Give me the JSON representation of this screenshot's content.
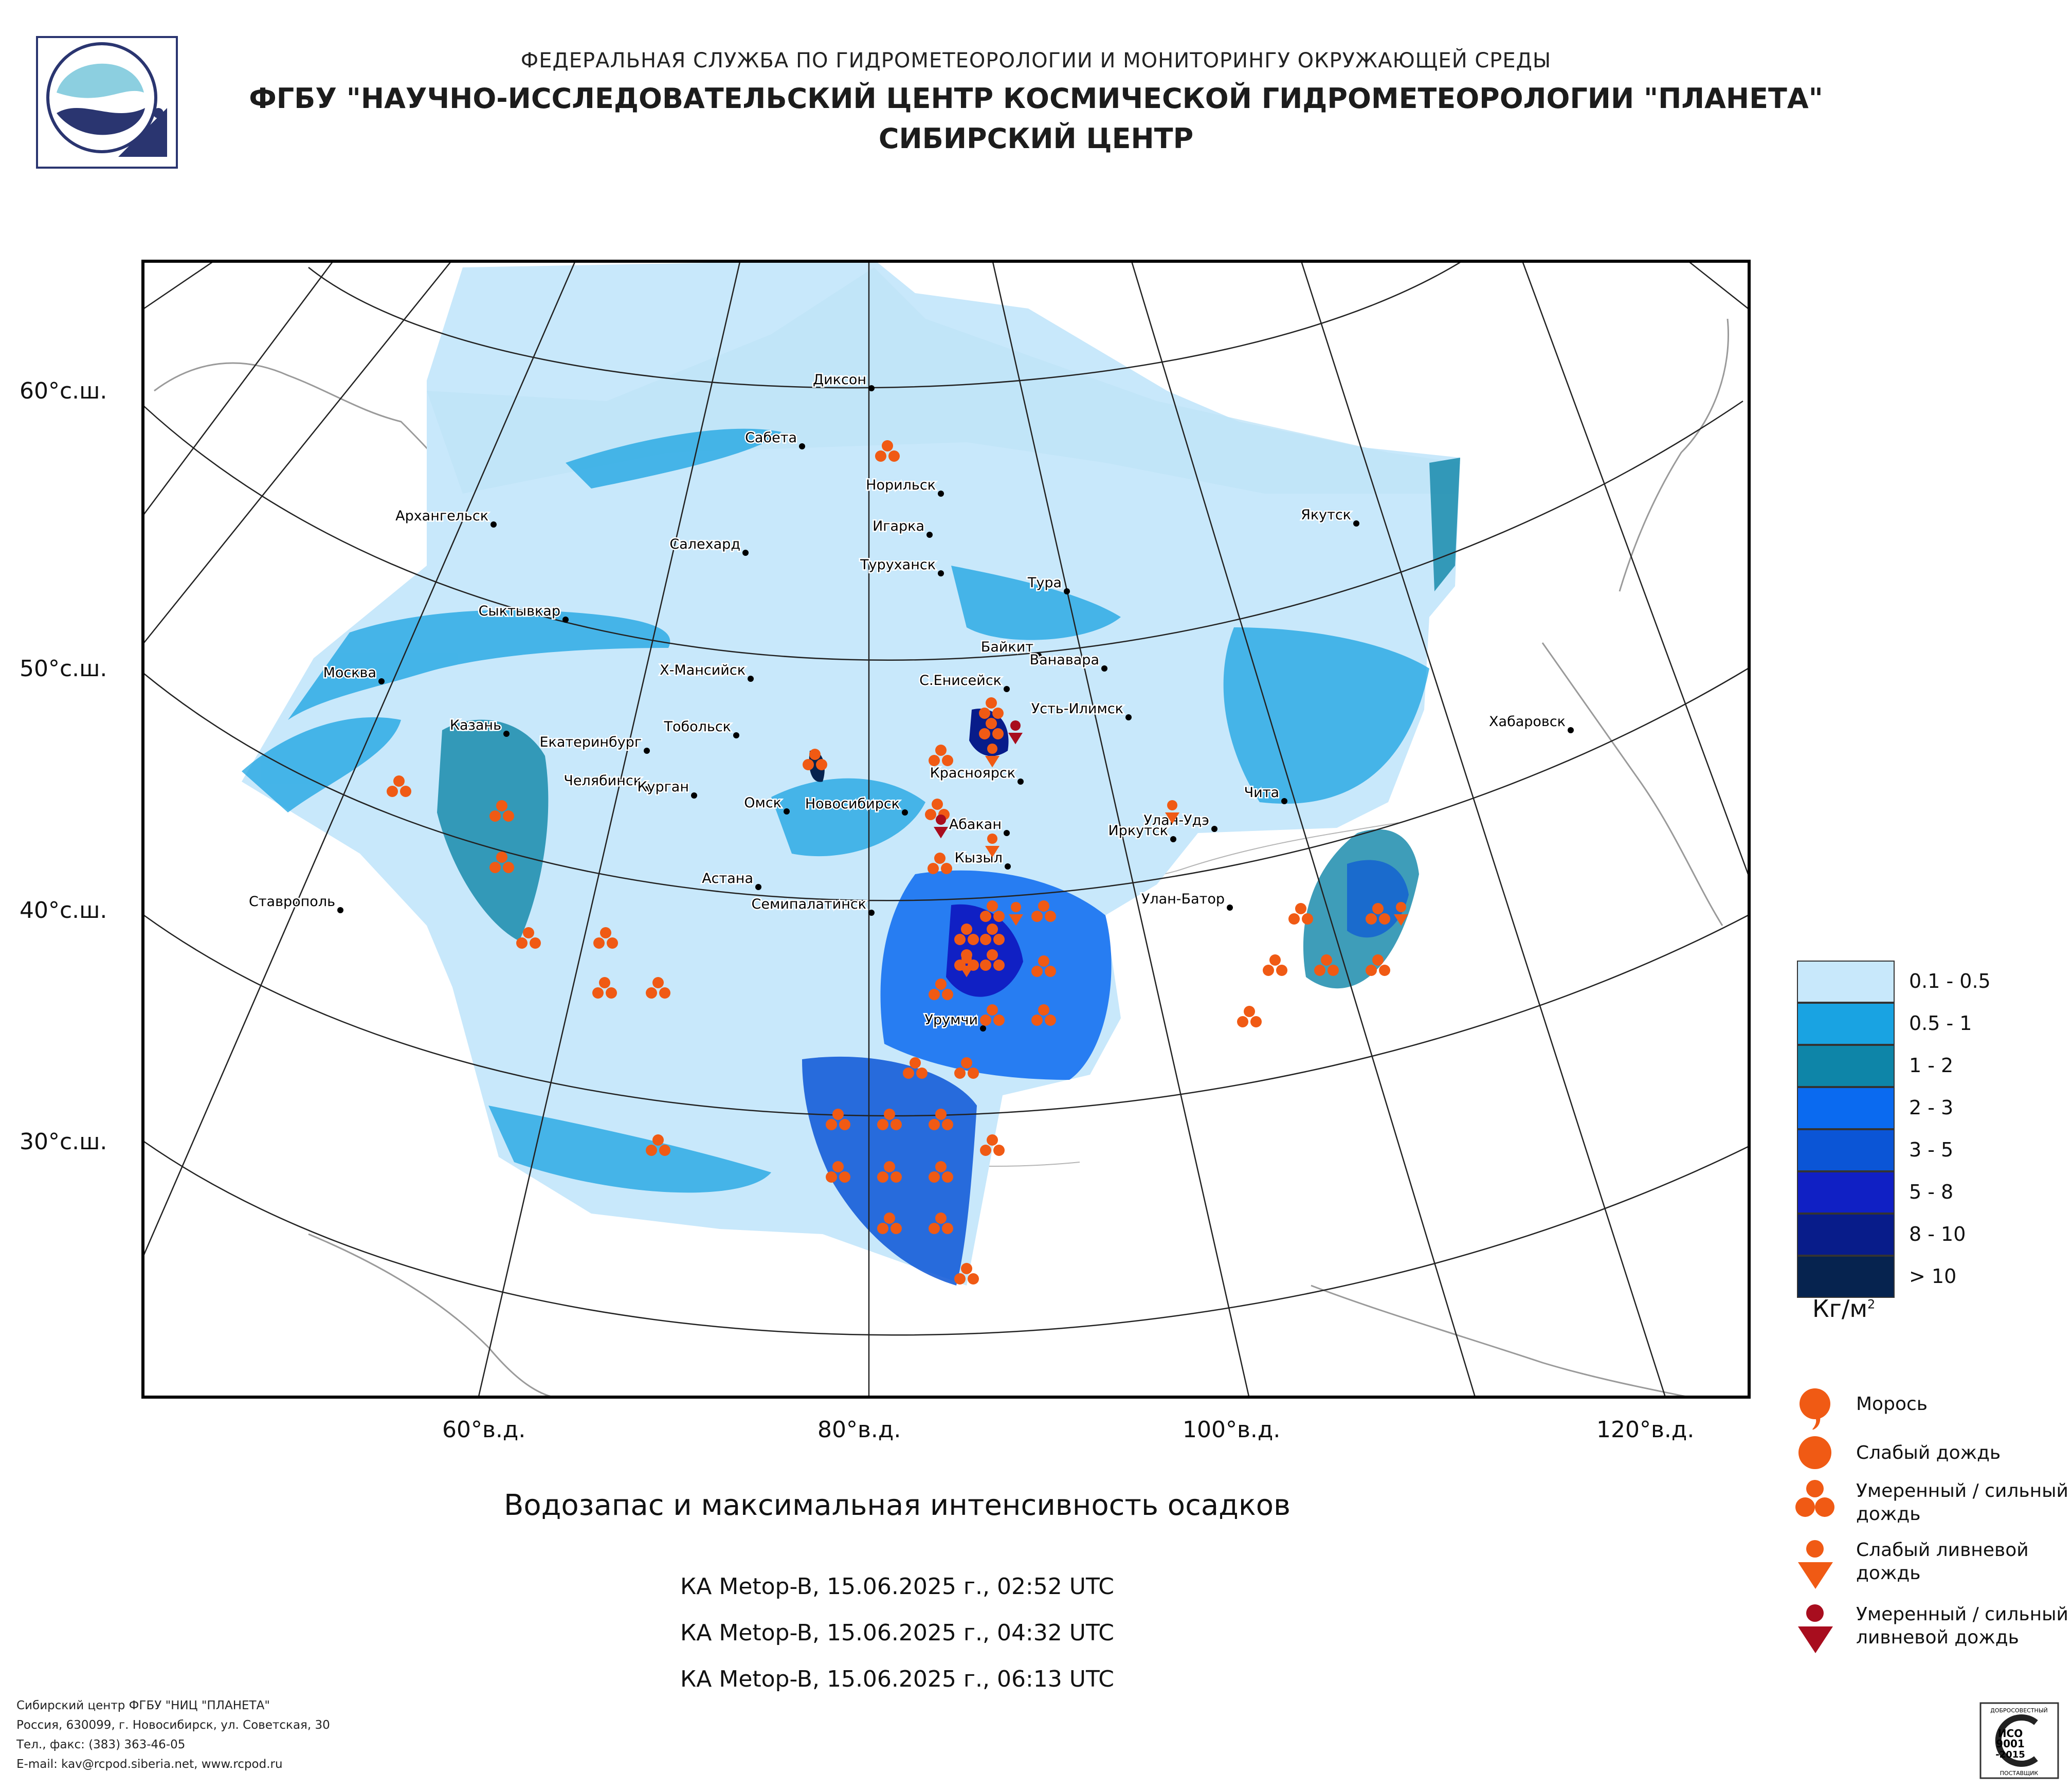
{
  "header": {
    "line1": "ФЕДЕРАЛЬНАЯ СЛУЖБА ПО ГИДРОМЕТЕОРОЛОГИИ И МОНИТОРИНГУ ОКРУЖАЮЩЕЙ СРЕДЫ",
    "line2": "ФГБУ \"НАУЧНО-ИССЛЕДОВАТЕЛЬСКИЙ ЦЕНТР КОСМИЧЕСКОЙ ГИДРОМЕТЕОРОЛОГИИ \"ПЛАНЕТА\"",
    "line3": "СИБИРСКИЙ ЦЕНТР"
  },
  "axes": {
    "lat_labels": [
      "60°с.ш.",
      "50°с.ш.",
      "40°с.ш.",
      "30°с.ш."
    ],
    "lon_labels": [
      "60°в.д.",
      "80°в.д.",
      "100°в.д.",
      "120°в.д."
    ]
  },
  "cities": [
    "Диксон",
    "Сабета",
    "Норильск",
    "Игарка",
    "Салехард",
    "Архангельск",
    "Туруханск",
    "Тура",
    "Якутск",
    "Сыктывкар",
    "Байкит",
    "Ванавара",
    "Х-Мансийск",
    "С.Енисейск",
    "Усть-Илимск",
    "Москва",
    "Казань",
    "Екатеринбург",
    "Тобольск",
    "Хабаровск",
    "Челябинск",
    "Курган",
    "Красноярск",
    "Чита",
    "Омск",
    "Новосибирск",
    "Абакан",
    "Улан-Удэ",
    "Иркутск",
    "Кызыл",
    "Астана",
    "Семипалатинск",
    "Улан-Батор",
    "Ставрополь",
    "Урумчи"
  ],
  "caption": "Водозапас и максимальная интенсивность осадков",
  "passes": [
    "КА Metop-B, 15.06.2025 г., 02:52 UTC",
    "КА Metop-B, 15.06.2025 г., 04:32 UTC",
    "КА Metop-B, 15.06.2025 г., 06:13 UTC"
  ],
  "legend": {
    "scale": [
      {
        "label": "0.1 - 0.5",
        "color": "#c8e8fb"
      },
      {
        "label": "0.5 - 1",
        "color": "#19a3e2"
      },
      {
        "label": "1 - 2",
        "color": "#0e85a8"
      },
      {
        "label": "2 - 3",
        "color": "#0a6af0"
      },
      {
        "label": "3 - 5",
        "color": "#0b55d6"
      },
      {
        "label": "5 - 8",
        "color": "#1020c4"
      },
      {
        "label": "8 - 10",
        "color": "#081c8a"
      },
      {
        "label": "> 10",
        "color": "#06234f"
      }
    ],
    "units": "Кг/м",
    "units_sup": "2",
    "symbols": [
      {
        "name": "drizzle",
        "label": "Морось"
      },
      {
        "name": "light-rain",
        "label": "Слабый дождь"
      },
      {
        "name": "moderate-rain",
        "label": "Умеренный / сильный\nдождь"
      },
      {
        "name": "light-shower",
        "label": "Слабый ливневой\nдождь"
      },
      {
        "name": "heavy-shower",
        "label": "Умеренный / сильный\nливневой дождь"
      }
    ]
  },
  "footer": {
    "line1": "Сибирский центр ФГБУ \"НИЦ \"ПЛАНЕТА\"",
    "line2": "Россия, 630099, г. Новосибирск, ул. Советская, 30",
    "line3": "Тел., факс: (383) 363-46-05",
    "line4": "E-mail: kav@rcpod.siberia.net, www.rcpod.ru"
  },
  "iso": {
    "top": "ДОБРОСОВЕСТНЫЙ",
    "mid1": "ИСО",
    "mid2": "9001",
    "mid3": "-2015",
    "bottom": "ПОСТАВЩИК"
  },
  "colors": {
    "rain_orange": "#f05a14",
    "heavy_shower_red": "#a80d1e",
    "frame": "#000000"
  }
}
